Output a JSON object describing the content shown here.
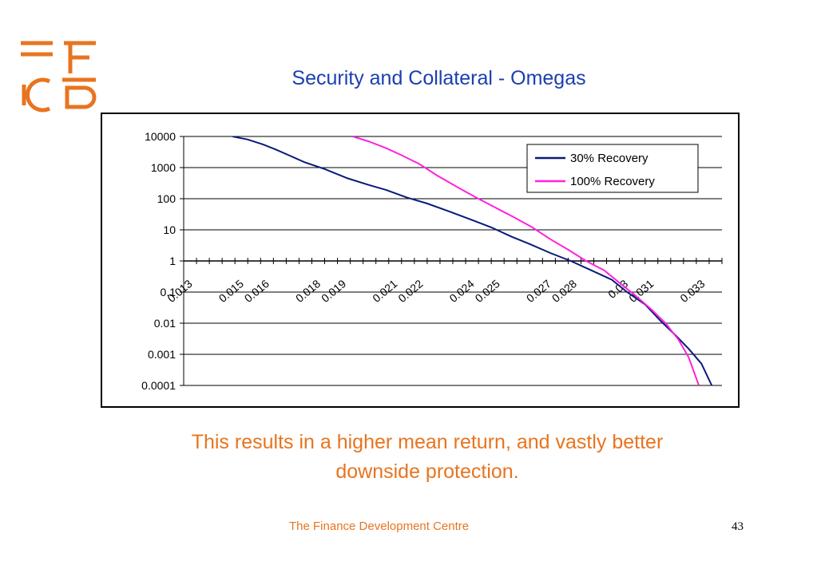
{
  "slide": {
    "title": "Security and Collateral - Omegas",
    "caption_line1": "This results in a higher mean return, and vastly better",
    "caption_line2": "downside protection.",
    "footer": "The Finance Development Centre",
    "page_number": "43"
  },
  "colors": {
    "brand_orange": "#e8741f",
    "title_blue": "#1a3fb0",
    "series_navy": "#0a1a7a",
    "series_magenta": "#ff22dd"
  },
  "chart_data": {
    "type": "line",
    "title": "",
    "xlabel": "",
    "ylabel": "",
    "y_scale": "log",
    "ylim": [
      0.0001,
      10000
    ],
    "xlim": [
      0.0125,
      0.0335
    ],
    "grid": "horizontal major gridlines",
    "legend_position": "top-right",
    "y_tick_labels": [
      "10000",
      "1000",
      "100",
      "10",
      "1",
      "0.1",
      "0.01",
      "0.001",
      "0.0001"
    ],
    "x_tick_labels": [
      "0.013",
      "0.015",
      "0.016",
      "0.018",
      "0.019",
      "0.021",
      "0.022",
      "0.024",
      "0.025",
      "0.027",
      "0.028",
      "0.03",
      "0.031",
      "0.033"
    ],
    "x_tick_values": [
      0.013,
      0.015,
      0.016,
      0.018,
      0.019,
      0.021,
      0.022,
      0.024,
      0.025,
      0.027,
      0.028,
      0.03,
      0.031,
      0.033
    ],
    "series": [
      {
        "name": "30% Recovery",
        "x": [
          0.0144,
          0.015,
          0.0156,
          0.0161,
          0.0166,
          0.0172,
          0.018,
          0.0189,
          0.0197,
          0.0204,
          0.0212,
          0.022,
          0.0229,
          0.0238,
          0.0245,
          0.0253,
          0.026,
          0.0268,
          0.0276,
          0.0284,
          0.0292,
          0.0298,
          0.0305,
          0.0311,
          0.0317,
          0.0322,
          0.0327,
          0.0331
        ],
        "y": [
          10000,
          8000,
          5500,
          3800,
          2500,
          1500,
          900,
          450,
          280,
          190,
          110,
          70,
          38,
          20,
          12,
          6,
          3.5,
          1.8,
          1,
          0.5,
          0.25,
          0.1,
          0.04,
          0.012,
          0.004,
          0.0015,
          0.0005,
          0.0001
        ]
      },
      {
        "name": "100% Recovery",
        "x": [
          0.0191,
          0.0197,
          0.0204,
          0.021,
          0.0217,
          0.0224,
          0.0232,
          0.0239,
          0.0246,
          0.0254,
          0.0261,
          0.0268,
          0.0275,
          0.0282,
          0.0289,
          0.0295,
          0.0301,
          0.0307,
          0.0313,
          0.0318,
          0.0322,
          0.0326
        ],
        "y": [
          10000,
          7000,
          4200,
          2500,
          1300,
          550,
          230,
          110,
          55,
          25,
          12,
          5,
          2.3,
          1,
          0.5,
          0.2,
          0.08,
          0.03,
          0.01,
          0.003,
          0.0008,
          0.0001
        ]
      }
    ]
  }
}
